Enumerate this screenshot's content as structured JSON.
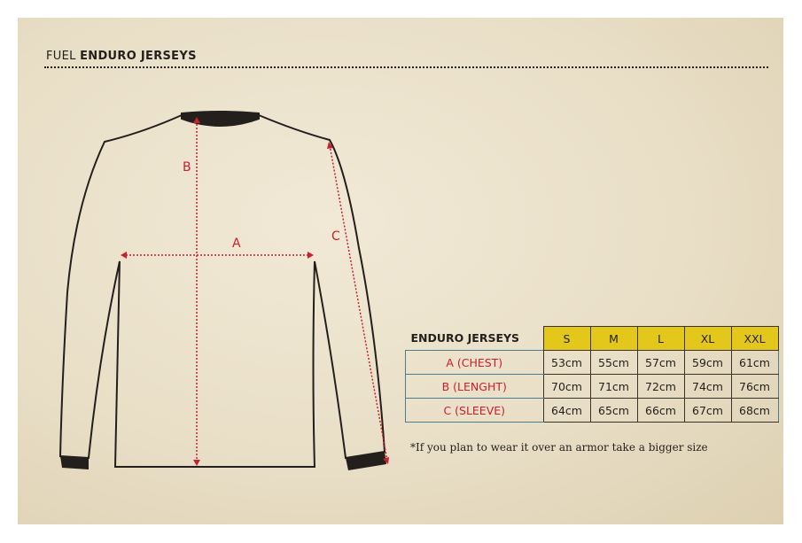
{
  "header": {
    "brand": "FUEL",
    "title": "ENDURO JERSEYS"
  },
  "diagram": {
    "labels": {
      "a": "A",
      "b": "B",
      "c": "C"
    },
    "measure_color": "#c8202f"
  },
  "size_table": {
    "title": "ENDURO JERSEYS",
    "sizes": [
      "S",
      "M",
      "L",
      "XL",
      "XXL"
    ],
    "rows": [
      {
        "label": "A (CHEST)",
        "values": [
          "53cm",
          "55cm",
          "57cm",
          "59cm",
          "61cm"
        ]
      },
      {
        "label": "B (LENGHT)",
        "values": [
          "70cm",
          "71cm",
          "72cm",
          "74cm",
          "76cm"
        ]
      },
      {
        "label": "C (SLEEVE)",
        "values": [
          "64cm",
          "65cm",
          "66cm",
          "67cm",
          "68cm"
        ]
      }
    ],
    "header_color": "#e3c81b"
  },
  "note": "*If you plan to wear it over an armor take a bigger size"
}
